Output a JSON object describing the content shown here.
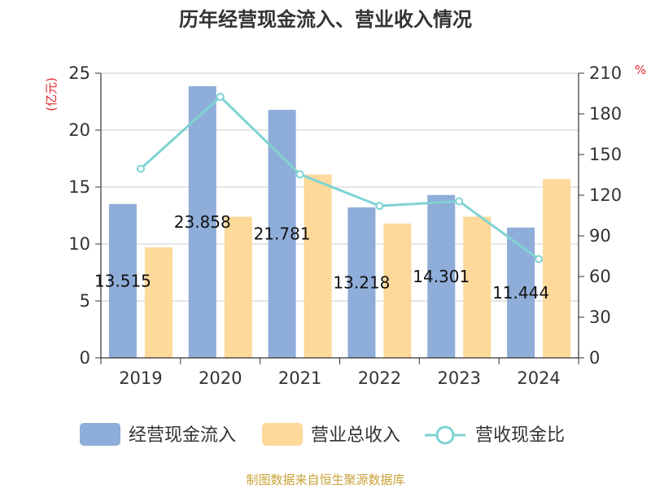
{
  "chart_data": {
    "type": "bar",
    "title": "历年经营现金流入、营业收入情况",
    "categories": [
      "2019",
      "2020",
      "2021",
      "2022",
      "2023",
      "2024"
    ],
    "left_axis": {
      "unit": "(亿元)",
      "ylim": [
        0,
        25
      ],
      "ticks": [
        "0",
        "5",
        "10",
        "15",
        "20",
        "25"
      ]
    },
    "right_axis": {
      "unit": "%",
      "ylim": [
        0,
        210
      ],
      "ticks": [
        "0",
        "30",
        "60",
        "90",
        "120",
        "150",
        "180",
        "210"
      ]
    },
    "series": [
      {
        "name": "经营现金流入",
        "type": "bar",
        "axis": "left",
        "color": "#8eadd9",
        "values": [
          13.515,
          23.858,
          21.781,
          13.218,
          14.301,
          11.444
        ],
        "labels": [
          "13.515",
          "23.858",
          "21.781",
          "13.218",
          "14.301",
          "11.444"
        ]
      },
      {
        "name": "营业总收入",
        "type": "bar",
        "axis": "left",
        "color": "#fdd99a",
        "values": [
          9.7,
          12.4,
          16.1,
          11.8,
          12.4,
          15.7
        ]
      },
      {
        "name": "营收现金比",
        "type": "line",
        "axis": "right",
        "color": "#7fd3d3",
        "values": [
          139.5,
          192.6,
          135.4,
          112.1,
          115.5,
          72.9
        ]
      }
    ],
    "grid": true,
    "legend": "bottom",
    "source": "制图数据来自恒生聚源数据库"
  }
}
